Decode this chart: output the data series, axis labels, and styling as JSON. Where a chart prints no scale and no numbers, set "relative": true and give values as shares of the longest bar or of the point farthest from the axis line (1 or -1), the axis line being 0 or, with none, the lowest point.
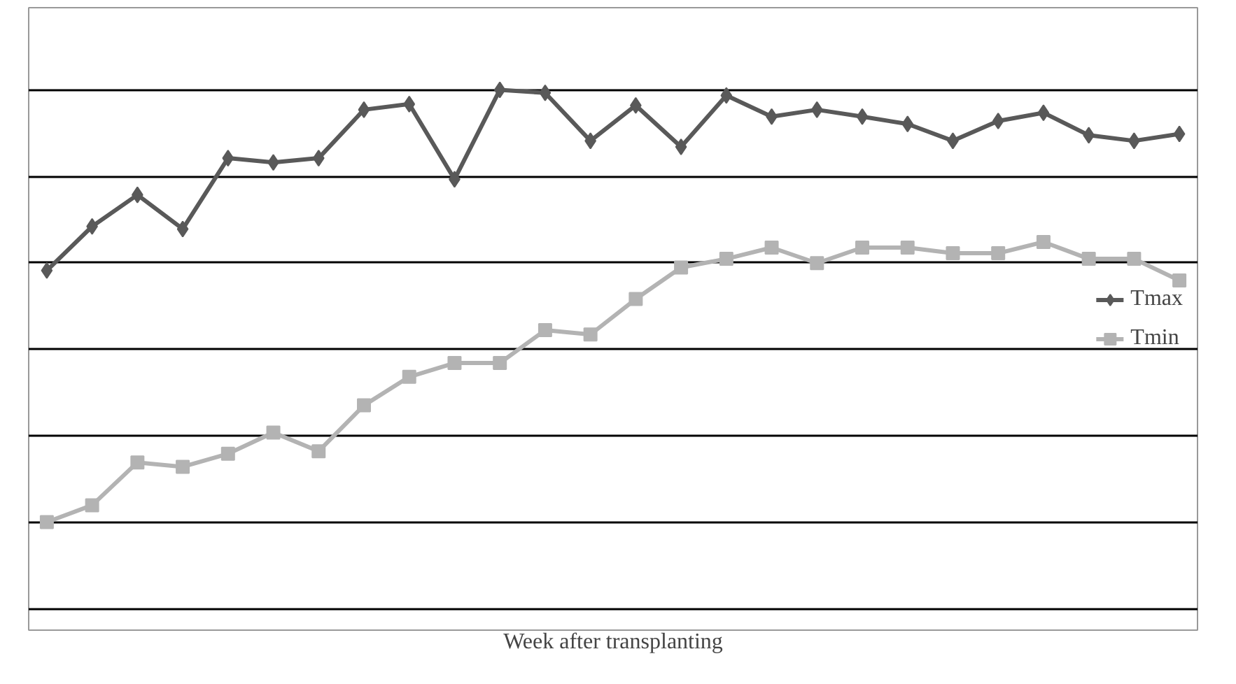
{
  "chart_data": {
    "type": "line",
    "relative": true,
    "xlabel": "Week after transplanting",
    "grid": "y",
    "legend": "right",
    "categories": [
      null,
      null,
      null,
      null,
      null,
      null,
      null,
      null,
      null,
      null,
      null,
      null,
      null,
      null,
      null,
      null,
      null,
      null,
      null,
      null,
      null,
      null,
      null,
      null,
      null,
      null
    ],
    "series": [
      {
        "name": "Tmax",
        "color": "#595959",
        "marker": "diamond",
        "values": [
          0.582,
          0.684,
          0.757,
          0.678,
          0.842,
          0.832,
          0.842,
          0.954,
          0.967,
          0.793,
          1,
          0.993,
          0.882,
          0.964,
          0.868,
          0.987,
          0.938,
          0.954,
          0.938,
          0.921,
          0.882,
          0.928,
          0.947,
          0.895,
          0.882,
          0.898
        ]
      },
      {
        "name": "Tmin",
        "color": "#b3b3b3",
        "marker": "square",
        "values": [
          0,
          0.039,
          0.138,
          0.128,
          0.158,
          0.207,
          0.164,
          0.27,
          0.336,
          0.368,
          0.368,
          0.444,
          0.434,
          0.516,
          0.589,
          0.609,
          0.635,
          0.599,
          0.635,
          0.635,
          0.622,
          0.622,
          0.648,
          0.609,
          0.609,
          0.559
        ]
      }
    ]
  }
}
